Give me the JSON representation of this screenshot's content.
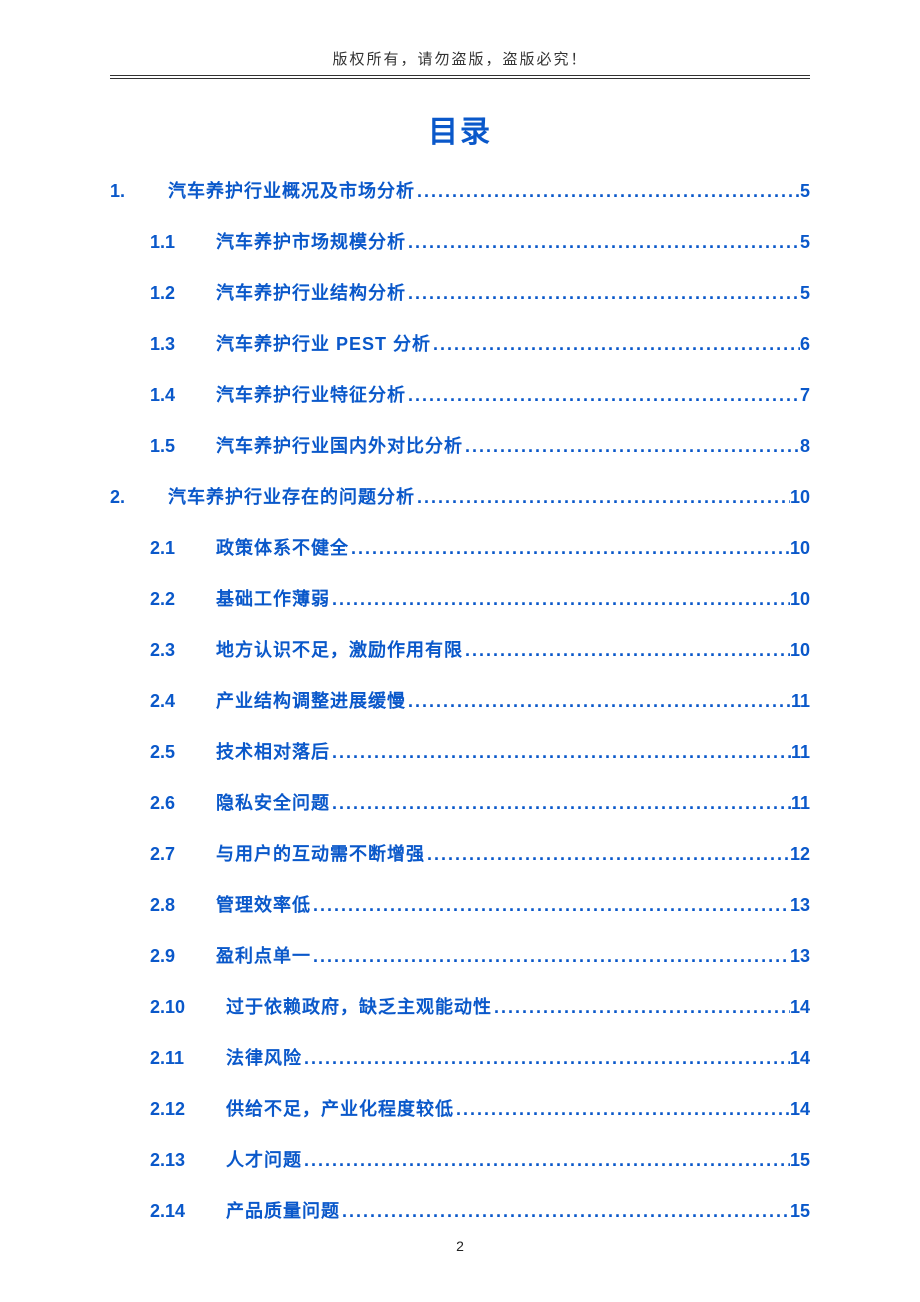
{
  "colors": {
    "link": "#0a58ca",
    "text": "#333333",
    "background": "#ffffff"
  },
  "typography": {
    "body_family": "Microsoft YaHei",
    "title_fontsize_pt": 22,
    "row_fontsize_pt": 13,
    "header_fontsize_pt": 11
  },
  "header": {
    "notice": "版权所有，请勿盗版，盗版必究！"
  },
  "title": "目录",
  "footer": {
    "page_number": "2"
  },
  "toc": {
    "items": [
      {
        "level": 1,
        "num": "1.",
        "label": "汽车养护行业概况及市场分析",
        "page": "5"
      },
      {
        "level": 2,
        "num": "1.1",
        "label": "汽车养护市场规模分析",
        "page": "5"
      },
      {
        "level": 2,
        "num": "1.2",
        "label": "汽车养护行业结构分析",
        "page": "5"
      },
      {
        "level": 2,
        "num": "1.3",
        "label": "汽车养护行业 PEST 分析",
        "page": "6"
      },
      {
        "level": 2,
        "num": "1.4",
        "label": "汽车养护行业特征分析",
        "page": "7"
      },
      {
        "level": 2,
        "num": "1.5",
        "label": "汽车养护行业国内外对比分析",
        "page": "8"
      },
      {
        "level": 1,
        "num": "2.",
        "label": "汽车养护行业存在的问题分析",
        "page": "10"
      },
      {
        "level": 2,
        "num": "2.1",
        "label": "政策体系不健全",
        "page": "10"
      },
      {
        "level": 2,
        "num": "2.2",
        "label": "基础工作薄弱",
        "page": "10"
      },
      {
        "level": 2,
        "num": "2.3",
        "label": "地方认识不足，激励作用有限",
        "page": "10"
      },
      {
        "level": 2,
        "num": "2.4",
        "label": "产业结构调整进展缓慢",
        "page": "11"
      },
      {
        "level": 2,
        "num": "2.5",
        "label": "技术相对落后",
        "page": "11"
      },
      {
        "level": 2,
        "num": "2.6",
        "label": "隐私安全问题",
        "page": "11"
      },
      {
        "level": 2,
        "num": "2.7",
        "label": "与用户的互动需不断增强",
        "page": "12"
      },
      {
        "level": 2,
        "num": "2.8",
        "label": "管理效率低",
        "page": "13"
      },
      {
        "level": 2,
        "num": "2.9",
        "label": "盈利点单一",
        "page": "13"
      },
      {
        "level": 2,
        "num": "2.10",
        "label": "过于依赖政府，缺乏主观能动性",
        "page": "14"
      },
      {
        "level": 2,
        "num": "2.11",
        "label": "法律风险",
        "page": "14"
      },
      {
        "level": 2,
        "num": "2.12",
        "label": "供给不足，产业化程度较低",
        "page": "14"
      },
      {
        "level": 2,
        "num": "2.13",
        "label": "人才问题",
        "page": "15"
      },
      {
        "level": 2,
        "num": "2.14",
        "label": "产品质量问题",
        "page": "15"
      }
    ]
  }
}
